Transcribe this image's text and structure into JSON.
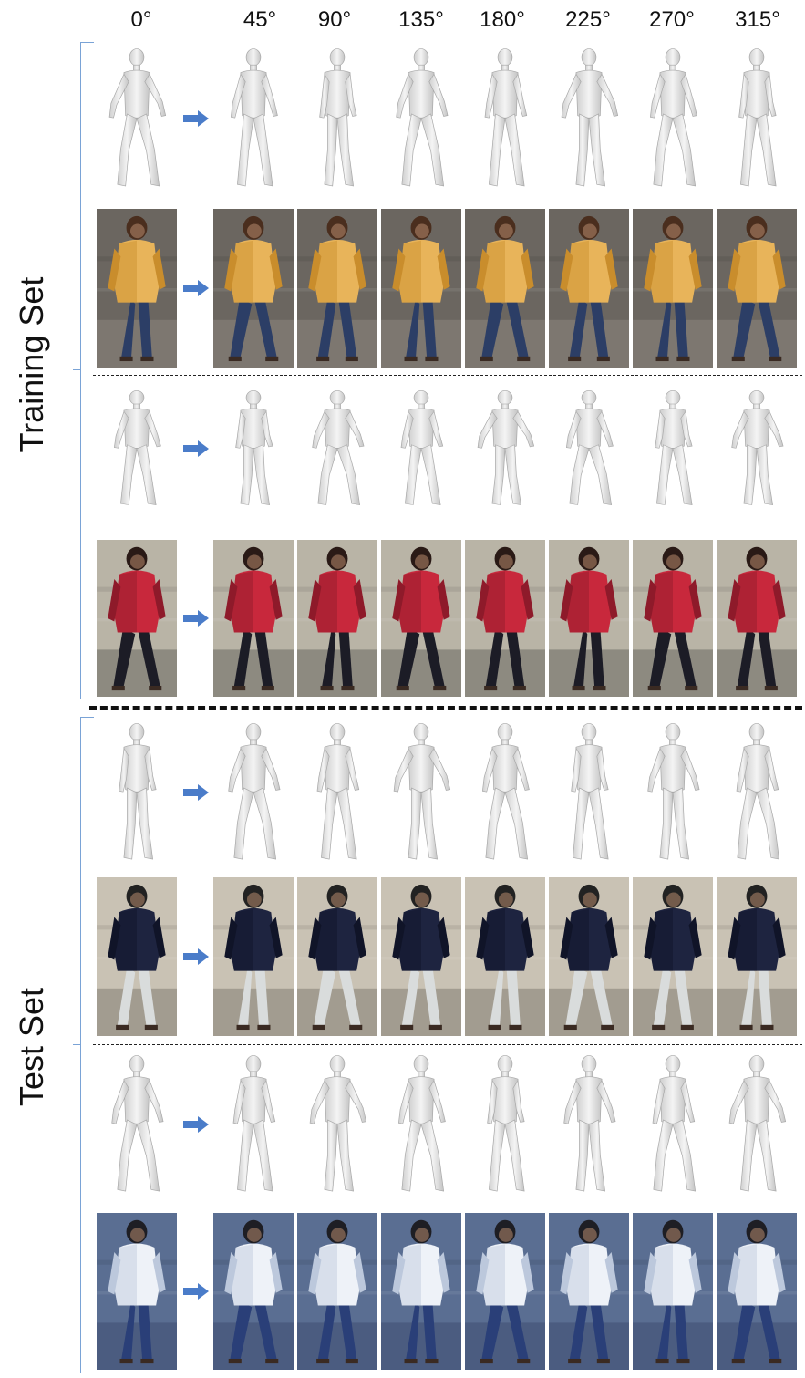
{
  "angles": [
    "0°",
    "45°",
    "90°",
    "135°",
    "180°",
    "225°",
    "270°",
    "315°"
  ],
  "sections": [
    {
      "label": "Training Set"
    },
    {
      "label": "Test Set"
    }
  ],
  "persons": [
    {
      "jacket": "#e8b45a",
      "jacket_shade": "#c98d2c",
      "pants": "#2c3e66",
      "hair": "#4a2e1e",
      "bg": "#6b6660",
      "ground": "#7d7770"
    },
    {
      "jacket": "#c8283c",
      "jacket_shade": "#8e1a2a",
      "pants": "#1c1c26",
      "hair": "#2a1a16",
      "bg": "#b9b4a6",
      "ground": "#8d8a80"
    },
    {
      "jacket": "#1e2440",
      "jacket_shade": "#101428",
      "pants": "#d9dcdc",
      "hair": "#222222",
      "bg": "#c9c2b4",
      "ground": "#a29c90"
    },
    {
      "jacket": "#eef2f8",
      "jacket_shade": "#bcc8dc",
      "pants": "#2a3f78",
      "hair": "#1e1e24",
      "bg": "#5a6e92",
      "ground": "#4b5c80"
    }
  ],
  "icons": {
    "arrow": "right-arrow-icon",
    "arrow_color": "#4a7cc9",
    "bracket_color": "#7aa3d6"
  }
}
